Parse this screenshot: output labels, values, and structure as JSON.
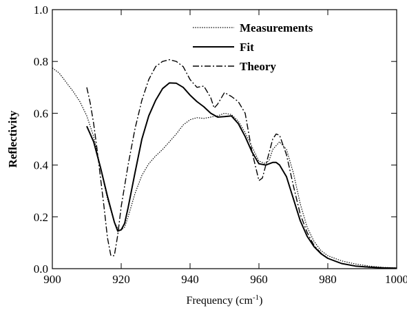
{
  "chart_data": {
    "type": "line",
    "xlabel": "Frequency (cm",
    "xlabel_superscript": "-1",
    "xlabel_close": ")",
    "ylabel": "Reflectivity",
    "xlim": [
      900,
      1000
    ],
    "ylim": [
      0.0,
      1.0
    ],
    "xticks": [
      900,
      920,
      940,
      960,
      980,
      1000
    ],
    "yticks": [
      0.0,
      0.2,
      0.4,
      0.6,
      0.8,
      1.0
    ],
    "xtick_labels": [
      "900",
      "920",
      "940",
      "960",
      "980",
      "1000"
    ],
    "ytick_labels": [
      "0.0",
      "0.2",
      "0.4",
      "0.6",
      "0.8",
      "1.0"
    ],
    "grid": false,
    "legend_position": "top-right",
    "series": [
      {
        "name": "Measurements",
        "style": "dotted",
        "points": [
          [
            900,
            0.775
          ],
          [
            902,
            0.755
          ],
          [
            904,
            0.72
          ],
          [
            906,
            0.685
          ],
          [
            908,
            0.645
          ],
          [
            910,
            0.59
          ],
          [
            912,
            0.51
          ],
          [
            914,
            0.39
          ],
          [
            916,
            0.27
          ],
          [
            918,
            0.18
          ],
          [
            919,
            0.155
          ],
          [
            920,
            0.15
          ],
          [
            921,
            0.16
          ],
          [
            922,
            0.2
          ],
          [
            924,
            0.29
          ],
          [
            926,
            0.36
          ],
          [
            928,
            0.405
          ],
          [
            930,
            0.435
          ],
          [
            932,
            0.46
          ],
          [
            934,
            0.49
          ],
          [
            936,
            0.52
          ],
          [
            938,
            0.555
          ],
          [
            940,
            0.575
          ],
          [
            942,
            0.583
          ],
          [
            944,
            0.58
          ],
          [
            946,
            0.585
          ],
          [
            948,
            0.59
          ],
          [
            950,
            0.6
          ],
          [
            952,
            0.595
          ],
          [
            954,
            0.57
          ],
          [
            956,
            0.525
          ],
          [
            958,
            0.47
          ],
          [
            960,
            0.415
          ],
          [
            962,
            0.405
          ],
          [
            963,
            0.42
          ],
          [
            964,
            0.46
          ],
          [
            966,
            0.49
          ],
          [
            968,
            0.46
          ],
          [
            970,
            0.37
          ],
          [
            972,
            0.25
          ],
          [
            974,
            0.16
          ],
          [
            976,
            0.105
          ],
          [
            978,
            0.07
          ],
          [
            980,
            0.05
          ],
          [
            984,
            0.03
          ],
          [
            988,
            0.018
          ],
          [
            992,
            0.01
          ],
          [
            996,
            0.005
          ],
          [
            1000,
            0.003
          ]
        ]
      },
      {
        "name": "Fit",
        "style": "solid",
        "points": [
          [
            910,
            0.55
          ],
          [
            912,
            0.49
          ],
          [
            914,
            0.39
          ],
          [
            916,
            0.28
          ],
          [
            918,
            0.18
          ],
          [
            919,
            0.145
          ],
          [
            920,
            0.15
          ],
          [
            921,
            0.175
          ],
          [
            922,
            0.235
          ],
          [
            924,
            0.37
          ],
          [
            926,
            0.5
          ],
          [
            928,
            0.59
          ],
          [
            930,
            0.65
          ],
          [
            932,
            0.695
          ],
          [
            934,
            0.717
          ],
          [
            936,
            0.716
          ],
          [
            938,
            0.7
          ],
          [
            940,
            0.67
          ],
          [
            942,
            0.645
          ],
          [
            944,
            0.625
          ],
          [
            946,
            0.6
          ],
          [
            948,
            0.585
          ],
          [
            950,
            0.587
          ],
          [
            952,
            0.59
          ],
          [
            954,
            0.56
          ],
          [
            956,
            0.51
          ],
          [
            958,
            0.45
          ],
          [
            960,
            0.405
          ],
          [
            962,
            0.4
          ],
          [
            964,
            0.41
          ],
          [
            965,
            0.41
          ],
          [
            966,
            0.4
          ],
          [
            968,
            0.355
          ],
          [
            970,
            0.27
          ],
          [
            972,
            0.185
          ],
          [
            974,
            0.125
          ],
          [
            976,
            0.085
          ],
          [
            978,
            0.058
          ],
          [
            980,
            0.04
          ],
          [
            984,
            0.02
          ],
          [
            988,
            0.01
          ],
          [
            992,
            0.006
          ],
          [
            996,
            0.003
          ],
          [
            1000,
            0.002
          ]
        ]
      },
      {
        "name": "Theory",
        "style": "dashdot",
        "points": [
          [
            910,
            0.7
          ],
          [
            911,
            0.64
          ],
          [
            912,
            0.56
          ],
          [
            913,
            0.46
          ],
          [
            914,
            0.35
          ],
          [
            915,
            0.24
          ],
          [
            916,
            0.12
          ],
          [
            917,
            0.05
          ],
          [
            918,
            0.05
          ],
          [
            919,
            0.13
          ],
          [
            920,
            0.24
          ],
          [
            922,
            0.4
          ],
          [
            924,
            0.54
          ],
          [
            926,
            0.65
          ],
          [
            928,
            0.73
          ],
          [
            930,
            0.78
          ],
          [
            932,
            0.8
          ],
          [
            934,
            0.807
          ],
          [
            936,
            0.8
          ],
          [
            938,
            0.78
          ],
          [
            940,
            0.73
          ],
          [
            942,
            0.7
          ],
          [
            944,
            0.705
          ],
          [
            946,
            0.66
          ],
          [
            947,
            0.62
          ],
          [
            948,
            0.635
          ],
          [
            950,
            0.68
          ],
          [
            952,
            0.665
          ],
          [
            954,
            0.645
          ],
          [
            956,
            0.6
          ],
          [
            958,
            0.45
          ],
          [
            960,
            0.34
          ],
          [
            961,
            0.35
          ],
          [
            962,
            0.4
          ],
          [
            964,
            0.5
          ],
          [
            965,
            0.52
          ],
          [
            966,
            0.515
          ],
          [
            968,
            0.44
          ],
          [
            970,
            0.32
          ],
          [
            972,
            0.21
          ],
          [
            974,
            0.14
          ],
          [
            976,
            0.09
          ],
          [
            978,
            0.06
          ],
          [
            980,
            0.04
          ],
          [
            984,
            0.02
          ],
          [
            988,
            0.01
          ],
          [
            992,
            0.005
          ],
          [
            996,
            0.003
          ],
          [
            1000,
            0.002
          ]
        ]
      }
    ]
  }
}
